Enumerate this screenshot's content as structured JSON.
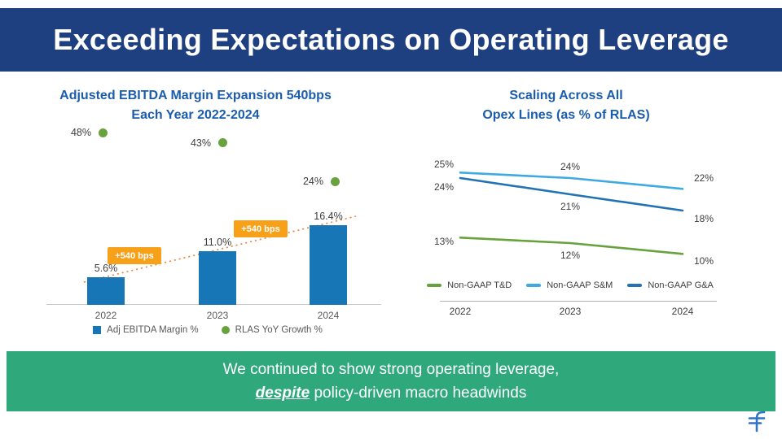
{
  "header": {
    "title": "Exceeding Expectations on Operating Leverage"
  },
  "left_chart": {
    "title_line1": "Adjusted EBITDA Margin Expansion 540bps",
    "title_line2": "Each Year 2022-2024"
  },
  "right_chart": {
    "title_line1": "Scaling Across All",
    "title_line2": "Opex Lines (as % of RLAS)"
  },
  "banner": {
    "line1": "We continued to show strong operating leverage,",
    "line2_emphasis": "despite",
    "line2_rest": " policy-driven macro headwinds"
  },
  "colors": {
    "header_bg": "#1E3F80",
    "chart_title_blue": "#1A5CAD",
    "bar_blue": "#1776B6",
    "dot_green": "#67A23F",
    "callout_orange": "#F7A11A",
    "trend_orange": "#ED7D31",
    "banner_green": "#2FA97C",
    "logo_blue": "#2E74C9"
  },
  "chart_data": [
    {
      "type": "bar",
      "title": "Adjusted EBITDA Margin Expansion 540bps Each Year 2022-2024",
      "categories": [
        "2022",
        "2023",
        "2024"
      ],
      "series": [
        {
          "name": "Adj EBITDA Margin %",
          "kind": "bar",
          "values": [
            5.6,
            11.0,
            16.4
          ],
          "labels": [
            "5.6%",
            "11.0%",
            "16.4%"
          ],
          "color": "#1776B6"
        },
        {
          "name": "RLAS YoY Growth %",
          "kind": "scatter",
          "values": [
            48,
            43,
            24
          ],
          "labels": [
            "48%",
            "43%",
            "24%"
          ],
          "color": "#67A23F"
        }
      ],
      "annotations": [
        {
          "text": "+540 bps",
          "between": [
            "2022",
            "2023"
          ]
        },
        {
          "text": "+540 bps",
          "between": [
            "2023",
            "2024"
          ]
        }
      ],
      "xlabel": "",
      "ylabel": "",
      "left_axis_range": [
        0,
        20
      ],
      "right_axis_range": [
        0,
        55
      ],
      "legend_position": "bottom",
      "grid": false
    },
    {
      "type": "line",
      "title": "Scaling Across All Opex Lines (as % of RLAS)",
      "categories": [
        "2022",
        "2023",
        "2024"
      ],
      "series": [
        {
          "name": "Non-GAAP T&D",
          "values": [
            13,
            12,
            10
          ],
          "labels": [
            "13%",
            "12%",
            "10%"
          ],
          "color": "#67A23F"
        },
        {
          "name": "Non-GAAP S&M",
          "values": [
            25,
            24,
            22
          ],
          "labels": [
            "25%",
            "24%",
            "22%"
          ],
          "color": "#3FA9E1"
        },
        {
          "name": "Non-GAAP G&A",
          "values": [
            24,
            21,
            18
          ],
          "labels": [
            "24%",
            "21%",
            "18%"
          ],
          "color": "#2272B5"
        }
      ],
      "xlabel": "",
      "ylabel": "",
      "ylim": [
        8,
        27
      ],
      "legend_position": "bottom",
      "grid": false
    }
  ]
}
